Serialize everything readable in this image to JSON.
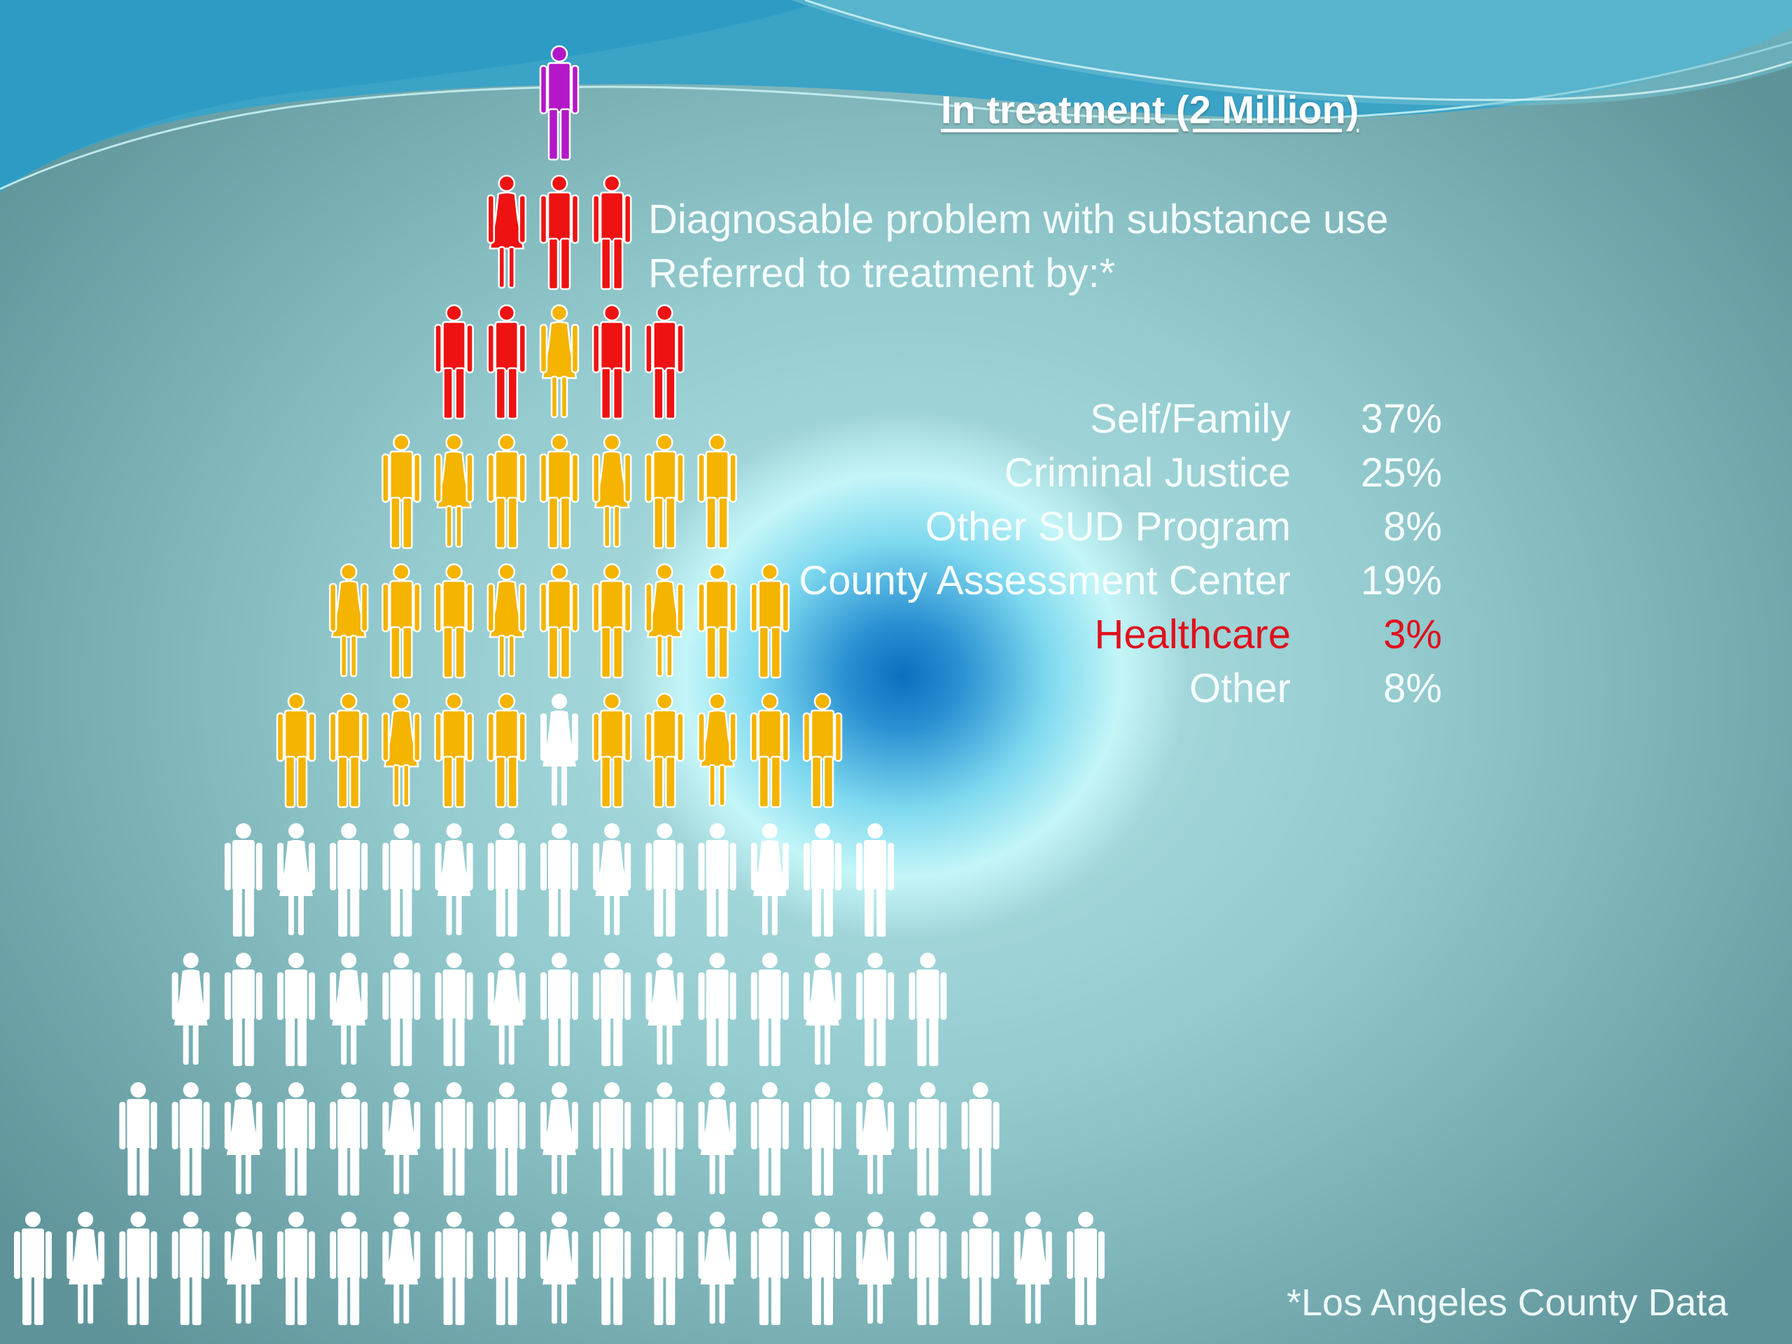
{
  "header": {
    "title": "In treatment (2 Million)",
    "line1": "Diagnosable problem with substance use",
    "line2": "Referred to treatment by:*"
  },
  "referrals": [
    {
      "label": "Self/Family",
      "value": "37%",
      "highlight": false
    },
    {
      "label": "Criminal Justice",
      "value": "25%",
      "highlight": false
    },
    {
      "label": "Other SUD Program",
      "value": "8%",
      "highlight": false
    },
    {
      "label": "County Assessment Center",
      "value": "19%",
      "highlight": false
    },
    {
      "label": "Healthcare",
      "value": "3%",
      "highlight": true
    },
    {
      "label": "Other",
      "value": "8%",
      "highlight": false
    }
  ],
  "footnote": "*Los Angeles County Data",
  "pyramid": {
    "colors": {
      "top": "#b417c8",
      "red": "#ee1212",
      "gold": "#f4b400",
      "white": "#ffffff"
    },
    "rows": [
      [
        "top"
      ],
      [
        "red",
        "red",
        "red"
      ],
      [
        "red",
        "red",
        "gold",
        "red",
        "red"
      ],
      [
        "gold",
        "gold",
        "gold",
        "gold",
        "gold",
        "gold",
        "gold"
      ],
      [
        "gold",
        "gold",
        "gold",
        "gold",
        "gold",
        "gold",
        "gold",
        "gold",
        "gold"
      ],
      [
        "gold",
        "gold",
        "gold",
        "gold",
        "gold",
        "white",
        "gold",
        "gold",
        "gold",
        "gold",
        "gold"
      ],
      [
        "white",
        "white",
        "white",
        "white",
        "white",
        "white",
        "white",
        "white",
        "white",
        "white",
        "white",
        "white",
        "white"
      ],
      [
        "white",
        "white",
        "white",
        "white",
        "white",
        "white",
        "white",
        "white",
        "white",
        "white",
        "white",
        "white",
        "white",
        "white",
        "white"
      ],
      [
        "white",
        "white",
        "white",
        "white",
        "white",
        "white",
        "white",
        "white",
        "white",
        "white",
        "white",
        "white",
        "white",
        "white",
        "white",
        "white",
        "white"
      ],
      [
        "white",
        "white",
        "white",
        "white",
        "white",
        "white",
        "white",
        "white",
        "white",
        "white",
        "white",
        "white",
        "white",
        "white",
        "white",
        "white",
        "white",
        "white",
        "white",
        "white",
        "white"
      ]
    ]
  }
}
